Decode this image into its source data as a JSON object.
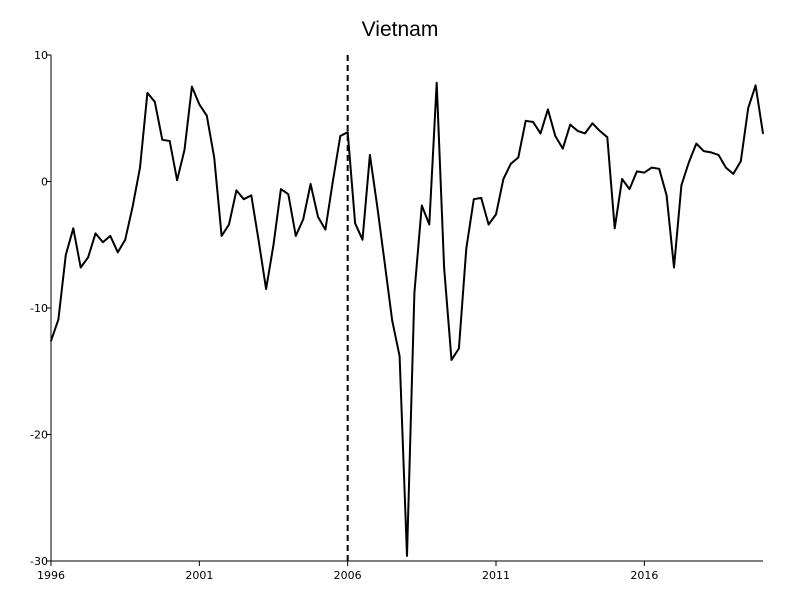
{
  "chart_data": {
    "type": "line",
    "title": "Vietnam",
    "xlabel": "",
    "ylabel": "",
    "x_unit": "year (quarterly observations)",
    "xlim": [
      1996.0,
      2019.75
    ],
    "ylim": [
      -30,
      10
    ],
    "x_ticks": [
      1996,
      2001,
      2006,
      2011,
      2016
    ],
    "x_tick_labels": [
      "1996",
      "2001",
      "2006",
      "2011",
      "2016"
    ],
    "y_ticks": [
      10,
      0,
      -10,
      -20,
      -30
    ],
    "y_tick_labels": [
      "10",
      "0",
      "-10",
      "-20",
      "-30"
    ],
    "grid": false,
    "legend": "none",
    "vertical_reference_line": {
      "x": 2006.0,
      "style": "dashed"
    },
    "series": [
      {
        "values": [
          {
            "x": 1996.0,
            "y": -12.6
          },
          {
            "x": 1996.25,
            "y": -10.9
          },
          {
            "x": 1996.5,
            "y": -5.8
          },
          {
            "x": 1996.75,
            "y": -3.7
          },
          {
            "x": 1997.0,
            "y": -6.8
          },
          {
            "x": 1997.25,
            "y": -6.0
          },
          {
            "x": 1997.5,
            "y": -4.1
          },
          {
            "x": 1997.75,
            "y": -4.8
          },
          {
            "x": 1998.0,
            "y": -4.3
          },
          {
            "x": 1998.25,
            "y": -5.6
          },
          {
            "x": 1998.5,
            "y": -4.6
          },
          {
            "x": 1998.75,
            "y": -2.0
          },
          {
            "x": 1999.0,
            "y": 1.1
          },
          {
            "x": 1999.25,
            "y": 7.0
          },
          {
            "x": 1999.5,
            "y": 6.3
          },
          {
            "x": 1999.75,
            "y": 3.3
          },
          {
            "x": 2000.0,
            "y": 3.2
          },
          {
            "x": 2000.25,
            "y": 0.1
          },
          {
            "x": 2000.5,
            "y": 2.5
          },
          {
            "x": 2000.75,
            "y": 7.5
          },
          {
            "x": 2001.0,
            "y": 6.1
          },
          {
            "x": 2001.25,
            "y": 5.2
          },
          {
            "x": 2001.5,
            "y": 1.9
          },
          {
            "x": 2001.75,
            "y": -4.3
          },
          {
            "x": 2002.0,
            "y": -3.4
          },
          {
            "x": 2002.25,
            "y": -0.7
          },
          {
            "x": 2002.5,
            "y": -1.4
          },
          {
            "x": 2002.75,
            "y": -1.1
          },
          {
            "x": 2003.0,
            "y": -4.7
          },
          {
            "x": 2003.25,
            "y": -8.5
          },
          {
            "x": 2003.5,
            "y": -5.0
          },
          {
            "x": 2003.75,
            "y": -0.6
          },
          {
            "x": 2004.0,
            "y": -1.0
          },
          {
            "x": 2004.25,
            "y": -4.3
          },
          {
            "x": 2004.5,
            "y": -3.0
          },
          {
            "x": 2004.75,
            "y": -0.2
          },
          {
            "x": 2005.0,
            "y": -2.8
          },
          {
            "x": 2005.25,
            "y": -3.8
          },
          {
            "x": 2005.5,
            "y": 0.0
          },
          {
            "x": 2005.75,
            "y": 3.6
          },
          {
            "x": 2006.0,
            "y": 3.9
          },
          {
            "x": 2006.25,
            "y": -3.3
          },
          {
            "x": 2006.5,
            "y": -4.6
          },
          {
            "x": 2006.75,
            "y": 2.1
          },
          {
            "x": 2007.0,
            "y": -2.0
          },
          {
            "x": 2007.25,
            "y": -6.5
          },
          {
            "x": 2007.5,
            "y": -11.0
          },
          {
            "x": 2007.75,
            "y": -13.8
          },
          {
            "x": 2008.0,
            "y": -29.6
          },
          {
            "x": 2008.25,
            "y": -8.8
          },
          {
            "x": 2008.5,
            "y": -1.9
          },
          {
            "x": 2008.75,
            "y": -3.4
          },
          {
            "x": 2009.0,
            "y": 7.8
          },
          {
            "x": 2009.25,
            "y": -6.8
          },
          {
            "x": 2009.5,
            "y": -14.1
          },
          {
            "x": 2009.75,
            "y": -13.2
          },
          {
            "x": 2010.0,
            "y": -5.3
          },
          {
            "x": 2010.25,
            "y": -1.4
          },
          {
            "x": 2010.5,
            "y": -1.3
          },
          {
            "x": 2010.75,
            "y": -3.4
          },
          {
            "x": 2011.0,
            "y": -2.6
          },
          {
            "x": 2011.25,
            "y": 0.2
          },
          {
            "x": 2011.5,
            "y": 1.4
          },
          {
            "x": 2011.75,
            "y": 1.9
          },
          {
            "x": 2012.0,
            "y": 4.8
          },
          {
            "x": 2012.25,
            "y": 4.7
          },
          {
            "x": 2012.5,
            "y": 3.8
          },
          {
            "x": 2012.75,
            "y": 5.7
          },
          {
            "x": 2013.0,
            "y": 3.6
          },
          {
            "x": 2013.25,
            "y": 2.6
          },
          {
            "x": 2013.5,
            "y": 4.5
          },
          {
            "x": 2013.75,
            "y": 4.0
          },
          {
            "x": 2014.0,
            "y": 3.8
          },
          {
            "x": 2014.25,
            "y": 4.6
          },
          {
            "x": 2014.5,
            "y": 4.0
          },
          {
            "x": 2014.75,
            "y": 3.5
          },
          {
            "x": 2015.0,
            "y": -3.7
          },
          {
            "x": 2015.25,
            "y": 0.2
          },
          {
            "x": 2015.5,
            "y": -0.6
          },
          {
            "x": 2015.75,
            "y": 0.8
          },
          {
            "x": 2016.0,
            "y": 0.7
          },
          {
            "x": 2016.25,
            "y": 1.1
          },
          {
            "x": 2016.5,
            "y": 1.0
          },
          {
            "x": 2016.75,
            "y": -1.1
          },
          {
            "x": 2017.0,
            "y": -6.8
          },
          {
            "x": 2017.25,
            "y": -0.3
          },
          {
            "x": 2017.5,
            "y": 1.5
          },
          {
            "x": 2017.75,
            "y": 3.0
          },
          {
            "x": 2018.0,
            "y": 2.4
          },
          {
            "x": 2018.25,
            "y": 2.3
          },
          {
            "x": 2018.5,
            "y": 2.1
          },
          {
            "x": 2018.75,
            "y": 1.1
          },
          {
            "x": 2019.0,
            "y": 0.6
          },
          {
            "x": 2019.25,
            "y": 1.6
          },
          {
            "x": 2019.5,
            "y": 5.8
          },
          {
            "x": 2019.75,
            "y": 7.6
          },
          {
            "x": 2020.0,
            "y": 3.8
          }
        ]
      }
    ]
  }
}
